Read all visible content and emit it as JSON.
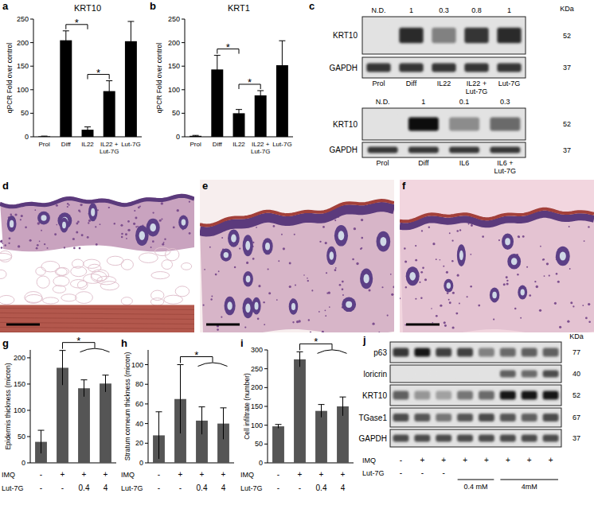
{
  "chart_data": [
    {
      "panel": "a",
      "type": "bar",
      "title": "KRT10",
      "y_label": "qPCR Fold over control",
      "categories": [
        "Prol",
        "Diff",
        "IL22",
        "IL22 + Lut-7G",
        "Lut-7G"
      ],
      "values": [
        1,
        205,
        15,
        97,
        203
      ],
      "errors": [
        0.5,
        20,
        6,
        22,
        42
      ],
      "color": "#000000",
      "ylim": [
        0,
        250
      ],
      "yticks": [
        0,
        50,
        100,
        150,
        200,
        250
      ],
      "annotations": [
        {
          "text": "*",
          "from": 1,
          "to": 2
        },
        {
          "text": "*",
          "from": 2,
          "to": 3
        }
      ]
    },
    {
      "panel": "b",
      "type": "bar",
      "title": "KRT1",
      "y_label": "qPCR Fold over control",
      "categories": [
        "Prol",
        "Diff",
        "IL22",
        "IL22 + Lut-7G",
        "Lut-7G"
      ],
      "values": [
        2,
        143,
        50,
        88,
        152
      ],
      "errors": [
        1,
        30,
        8,
        10,
        52
      ],
      "color": "#000000",
      "ylim": [
        0,
        250
      ],
      "yticks": [
        0,
        50,
        100,
        150,
        200,
        250
      ],
      "annotations": [
        {
          "text": "*",
          "from": 1,
          "to": 2
        },
        {
          "text": "*",
          "from": 2,
          "to": 3
        }
      ]
    },
    {
      "panel": "g",
      "type": "bar",
      "y_label": "Epidermis thickness (micron)",
      "categories": [
        null,
        null,
        null,
        null
      ],
      "category_rows": [
        {
          "name": "IMQ",
          "labels": [
            "-",
            "+",
            "+",
            "+"
          ]
        },
        {
          "name": "Lut-7G",
          "labels": [
            "-",
            "-",
            "0.4",
            "4"
          ]
        }
      ],
      "values": [
        40,
        181,
        142,
        151
      ],
      "errors": [
        22,
        33,
        16,
        16
      ],
      "color": "#555555",
      "ylim": [
        0,
        215
      ],
      "yticks": [
        0,
        50,
        100,
        150,
        200
      ],
      "annotations": [
        {
          "text": "*",
          "from": 1,
          "to": [
            2,
            3
          ]
        }
      ]
    },
    {
      "panel": "h",
      "type": "bar",
      "y_label": "Stratum corneum thickness (micron)",
      "categories": [
        null,
        null,
        null,
        null
      ],
      "category_rows": [
        {
          "name": "IMQ",
          "labels": [
            "-",
            "+",
            "+",
            "+"
          ]
        },
        {
          "name": "Lut-7G",
          "labels": [
            "-",
            "-",
            "0.4",
            "4"
          ]
        }
      ],
      "values": [
        28,
        65,
        43,
        40
      ],
      "errors": [
        24,
        35,
        14,
        16
      ],
      "color": "#555555",
      "ylim": [
        0,
        115
      ],
      "yticks": [
        0,
        20,
        40,
        60,
        80,
        100
      ],
      "annotations": [
        {
          "text": "*",
          "from": 1,
          "to": [
            2,
            3
          ]
        }
      ]
    },
    {
      "panel": "i",
      "type": "bar",
      "y_label": "Cell infiltrate (number)",
      "categories": [
        null,
        null,
        null,
        null
      ],
      "category_rows": [
        {
          "name": "IMQ",
          "labels": [
            "-",
            "+",
            "+",
            "+"
          ]
        },
        {
          "name": "Lut-7G",
          "labels": [
            "-",
            "-",
            "0.4",
            "4"
          ]
        }
      ],
      "values": [
        97,
        275,
        138,
        150
      ],
      "errors": [
        5,
        20,
        17,
        25
      ],
      "color": "#555555",
      "ylim": [
        0,
        300
      ],
      "yticks": [
        0,
        50,
        100,
        150,
        200,
        250,
        300
      ],
      "annotations": [
        {
          "text": "*",
          "from": 1,
          "to": [
            2,
            3
          ]
        }
      ]
    }
  ],
  "blots": [
    {
      "panel": "c",
      "unit_header": "KDa",
      "ratios": [
        "N.D.",
        1,
        0.3,
        0.8,
        1
      ],
      "lanes": [
        "Prol",
        "Diff",
        "IL22",
        "IL22 + Lut-7G",
        "Lut-7G"
      ],
      "rows": [
        {
          "name": "KRT10",
          "kda": 52,
          "intensity": [
            0,
            0.85,
            0.45,
            0.8,
            0.85
          ]
        },
        {
          "name": "GAPDH",
          "kda": 37,
          "intensity": [
            0.8,
            0.8,
            0.8,
            0.8,
            0.8
          ]
        }
      ]
    },
    {
      "ratios": [
        "N.D.",
        1,
        0.1,
        0.3
      ],
      "lanes": [
        "Prol",
        "Diff",
        "IL6",
        "IL6 + Lut-7G"
      ],
      "rows": [
        {
          "name": "KRT10",
          "kda": 52,
          "intensity": [
            0,
            1,
            0.4,
            0.55
          ]
        },
        {
          "name": "GAPDH",
          "kda": 37,
          "intensity": [
            0.8,
            0.8,
            0.8,
            0.8
          ]
        }
      ]
    },
    {
      "panel": "j",
      "unit_header": "KDa",
      "rows": [
        {
          "name": "p63",
          "kda": 77,
          "intensity": [
            0.8,
            0.95,
            0.75,
            0.75,
            0.45,
            0.55,
            0.6,
            0.6
          ]
        },
        {
          "name": "loricrin",
          "kda": 40,
          "intensity": [
            0,
            0,
            0,
            0,
            0,
            0.6,
            0.55,
            0.7
          ]
        },
        {
          "name": "KRT10",
          "kda": 52,
          "intensity": [
            0.6,
            0.35,
            0.3,
            0.5,
            0.55,
            0.95,
            0.95,
            0.95
          ]
        },
        {
          "name": "TGase1",
          "kda": 67,
          "intensity": [
            0.7,
            0.65,
            0.5,
            0.65,
            0.7,
            0.65,
            0.6,
            0.7
          ]
        },
        {
          "name": "GAPDH",
          "kda": 37,
          "intensity": [
            0.7,
            0.7,
            0.7,
            0.7,
            0.7,
            0.7,
            0.7,
            0.7
          ]
        }
      ],
      "lane_rows": [
        {
          "name": "IMQ",
          "labels": [
            "-",
            "+",
            "+",
            "+",
            "+",
            "+",
            "+",
            "+"
          ]
        },
        {
          "name": "Lut-7G",
          "labels": [
            "-",
            "-",
            "-",
            null,
            null,
            null,
            null,
            null
          ],
          "groups": [
            {
              "label": "0.4 mM",
              "lanes": [
                3,
                4
              ]
            },
            {
              "label": "4mM",
              "lanes": [
                5,
                7
              ]
            }
          ]
        }
      ]
    }
  ],
  "histology": [
    {
      "panel": "d"
    },
    {
      "panel": "e"
    },
    {
      "panel": "f"
    }
  ]
}
